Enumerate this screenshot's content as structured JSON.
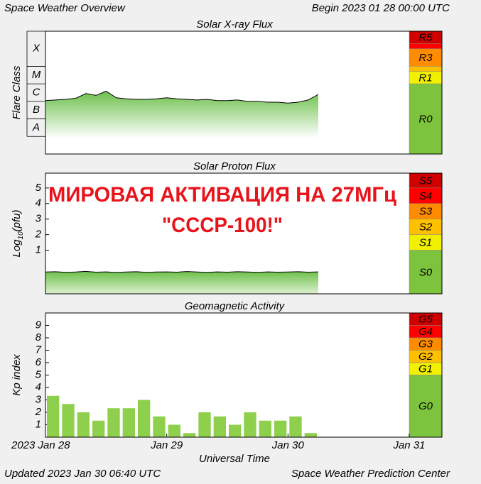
{
  "header": {
    "title": "Space Weather Overview",
    "begin": "Begin 2023 01 28 00:00 UTC"
  },
  "footer": {
    "updated": "Updated 2023 Jan 30 06:40 UTC",
    "source": "Space Weather Prediction Center"
  },
  "annotation": [
    "МИРОВАЯ АКТИВАЦИЯ НА 27МГц",
    "\"СССР-100!\""
  ],
  "chart_data": [
    {
      "type": "line",
      "title": "Solar X-ray Flux",
      "ylabel": "Flare Class",
      "log_scale": true,
      "xlim": [
        0,
        72
      ],
      "ylim": [
        1e-09,
        0.01
      ],
      "color": "#000000",
      "fill_color": "#6cc04a",
      "flare_classes": [
        {
          "label": "X",
          "value": 0.0001
        },
        {
          "label": "M",
          "value": 1e-05
        },
        {
          "label": "C",
          "value": 1e-06
        },
        {
          "label": "B",
          "value": 1e-07
        },
        {
          "label": "A",
          "value": 1e-08
        }
      ],
      "x": [
        0,
        2,
        4,
        6,
        8,
        10,
        12,
        14,
        16,
        18,
        20,
        22,
        24,
        26,
        28,
        30,
        32,
        34,
        36,
        38,
        40,
        42,
        44,
        46,
        48,
        50,
        52,
        54
      ],
      "values": [
        1.1e-06,
        1.2e-06,
        1.3e-06,
        1.5e-06,
        2.8e-06,
        2.2e-06,
        3.8e-06,
        1.6e-06,
        1.4e-06,
        1.3e-06,
        1.3e-06,
        1.4e-06,
        1.6e-06,
        1.4e-06,
        1.3e-06,
        1.2e-06,
        1.3e-06,
        1.1e-06,
        1.1e-06,
        1.2e-06,
        1e-06,
        1e-06,
        9e-07,
        9e-07,
        8e-07,
        9e-07,
        1.2e-06,
        2.5e-06
      ],
      "scale": [
        {
          "label": "R5",
          "value": 0.002,
          "color": "#d00000"
        },
        {
          "label": null,
          "value": 0.001,
          "color": "#ff0000"
        },
        {
          "label": "R3",
          "value": 0.0001,
          "color": "#ff8c00"
        },
        {
          "label": null,
          "value": 5e-05,
          "color": "#ffc000"
        },
        {
          "label": "R1",
          "value": 1e-05,
          "color": "#f0f000"
        },
        {
          "label": "R0",
          "color": "#7dc43e"
        }
      ]
    },
    {
      "type": "line",
      "title": "Solar Proton Flux",
      "ylabel": [
        "Log",
        "10",
        "(pfu)"
      ],
      "xlim": [
        0,
        72
      ],
      "ylim": [
        -1.8,
        5.95
      ],
      "yticks": [
        1,
        2,
        3,
        4,
        5
      ],
      "color": "#000000",
      "fill_color": "#6cc04a",
      "x": [
        0,
        2,
        4,
        6,
        8,
        10,
        12,
        14,
        16,
        18,
        20,
        22,
        24,
        26,
        28,
        30,
        32,
        34,
        36,
        38,
        40,
        42,
        44,
        46,
        48,
        50,
        52,
        54
      ],
      "values": [
        -0.4,
        -0.38,
        -0.42,
        -0.4,
        -0.36,
        -0.41,
        -0.39,
        -0.43,
        -0.4,
        -0.38,
        -0.42,
        -0.4,
        -0.39,
        -0.41,
        -0.37,
        -0.4,
        -0.42,
        -0.39,
        -0.41,
        -0.38,
        -0.4,
        -0.42,
        -0.39,
        -0.41,
        -0.4,
        -0.38,
        -0.41,
        -0.39
      ],
      "scale": [
        {
          "label": "S5",
          "value": 5,
          "color": "#d00000"
        },
        {
          "label": "S4",
          "value": 4,
          "color": "#ff0000"
        },
        {
          "label": "S3",
          "value": 3,
          "color": "#ff8c00"
        },
        {
          "label": "S2",
          "value": 2,
          "color": "#ffc000"
        },
        {
          "label": "S1",
          "value": 1,
          "color": "#f0f000"
        },
        {
          "label": "S0",
          "color": "#7dc43e"
        }
      ]
    },
    {
      "type": "bar",
      "title": "Geomagnetic Activity",
      "ylabel": "Kp index",
      "xlabel": "Universal Time",
      "xlim": [
        0,
        72
      ],
      "ylim": [
        0,
        10
      ],
      "yticks": [
        1,
        2,
        3,
        4,
        5,
        6,
        7,
        8,
        9
      ],
      "color": "#8ed04c",
      "xticks": [
        {
          "value": 0,
          "label": "2023 Jan 28"
        },
        {
          "value": 24,
          "label": "Jan 29"
        },
        {
          "value": 48,
          "label": "Jan 30"
        },
        {
          "value": 72,
          "label": "Jan 31"
        }
      ],
      "x": [
        0,
        3,
        6,
        9,
        12,
        15,
        18,
        21,
        24,
        27,
        30,
        33,
        36,
        39,
        42,
        45,
        48,
        51
      ],
      "values": [
        3.33,
        2.67,
        2,
        1.33,
        2.33,
        2.33,
        3,
        1.67,
        1,
        0.33,
        2,
        1.67,
        1,
        2,
        1.33,
        1.33,
        1.67,
        0.33
      ],
      "scale": [
        {
          "label": "G5",
          "value": 9,
          "color": "#d00000"
        },
        {
          "label": "G4",
          "value": 8,
          "color": "#ff0000"
        },
        {
          "label": "G3",
          "value": 7,
          "color": "#ff8c00"
        },
        {
          "label": "G2",
          "value": 6,
          "color": "#ffc000"
        },
        {
          "label": "G1",
          "value": 5,
          "color": "#f0f000"
        },
        {
          "label": "G0",
          "color": "#7dc43e"
        }
      ]
    }
  ]
}
